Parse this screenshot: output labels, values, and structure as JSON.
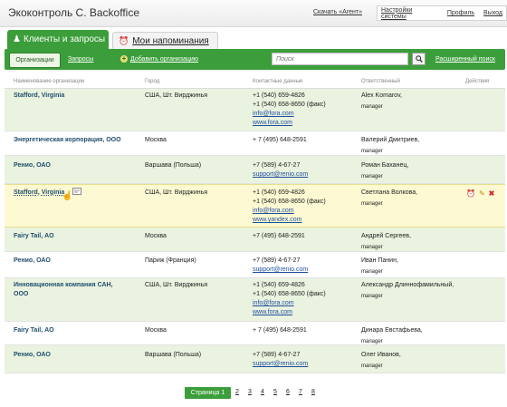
{
  "header": {
    "title": "Экоконтроль С. Backoffice",
    "agent_link": "Скачать «Агент»",
    "links": [
      "Настройки системы",
      "Профиль",
      "Выход"
    ]
  },
  "tabs": {
    "active": "Клиенты и запросы",
    "inactive": "Мои напоминания"
  },
  "toolbar": {
    "organizations": "Организации",
    "requests": "Запросы",
    "add_org": "Добавить организацию",
    "search_placeholder": "Поиск",
    "advanced_search": "Расширенный поиск"
  },
  "table": {
    "columns": [
      "Наименование организации",
      "Город",
      "Контактные данные",
      "Ответственный",
      "Действия"
    ],
    "rows": [
      {
        "org": "Stafford, Virginia",
        "city": "США, Шт. Вирджинья",
        "contacts": [
          "+1 (540) 659-4826",
          "+1 (540) 658-8650 (факс)"
        ],
        "links": [
          "info@fora.com",
          "www.fora.com"
        ],
        "resp_name": "Alex Komarov,",
        "resp_role": "manager"
      },
      {
        "org": "Энергетическая корпорация, ООО",
        "city": "Москва",
        "contacts": [
          "+ 7 (495) 648-2591"
        ],
        "links": [],
        "resp_name": "Валерий Дмитриев,",
        "resp_role": "manager"
      },
      {
        "org": "Ренио, ОАО",
        "city": "Варшава (Польша)",
        "contacts": [
          "+7 (589) 4-67-27"
        ],
        "links": [
          "support@renio.com"
        ],
        "resp_name": "Роман Баханец,",
        "resp_role": "manager"
      },
      {
        "org": "Stafford, Virginia",
        "city": "США, Шт. Вирджинья",
        "contacts": [
          "+1 (540) 659-4826",
          "+1 (540) 658-8650 (факс)"
        ],
        "links": [
          "info@fora.com",
          "www.yandex.com"
        ],
        "resp_name": "Светлана Волкова,",
        "resp_role": "manager"
      },
      {
        "org": "Fairy Tail, АО",
        "city": "Москва",
        "contacts": [
          "+7 (495) 648-2591"
        ],
        "links": [],
        "resp_name": "Андрей Сергеев,",
        "resp_role": "manager"
      },
      {
        "org": "Ренио, ОАО",
        "city": "Париж (Франция)",
        "contacts": [
          "+7 (589) 4-67-27"
        ],
        "links": [
          "support@renio.com"
        ],
        "resp_name": "Иван Панин,",
        "resp_role": "manager"
      },
      {
        "org": "Инновационная компания САН, ООО",
        "city": "США, Шт. Вирджинья",
        "contacts": [
          "+1 (540) 659-4826",
          "+1 (540) 658-8650 (факс)"
        ],
        "links": [
          "info@fora.com",
          "www.fora.com"
        ],
        "resp_name": "Александр Длиннофамильный,",
        "resp_role": "manager"
      },
      {
        "org": "Fairy Tail, АО",
        "city": "Москва",
        "contacts": [
          "+ 7 (495) 648-2591"
        ],
        "links": [],
        "resp_name": "Динара Евстафьева,",
        "resp_role": "manager"
      },
      {
        "org": "Ренио, ОАО",
        "city": "Варшава (Польша)",
        "contacts": [
          "+7 (589) 4-67-27"
        ],
        "links": [
          "support@renio.com"
        ],
        "resp_name": "Олег Иванов,",
        "resp_role": "manager"
      }
    ]
  },
  "pagination": {
    "current": "Страница 1",
    "pages": [
      "2",
      "3",
      "4",
      "5",
      "6",
      "7",
      "8"
    ]
  },
  "colors": {
    "accent": "#3c9e3a",
    "row_highlight": "#eaf3df",
    "row_hover": "#fdfad3",
    "link": "#1f4e9e"
  }
}
